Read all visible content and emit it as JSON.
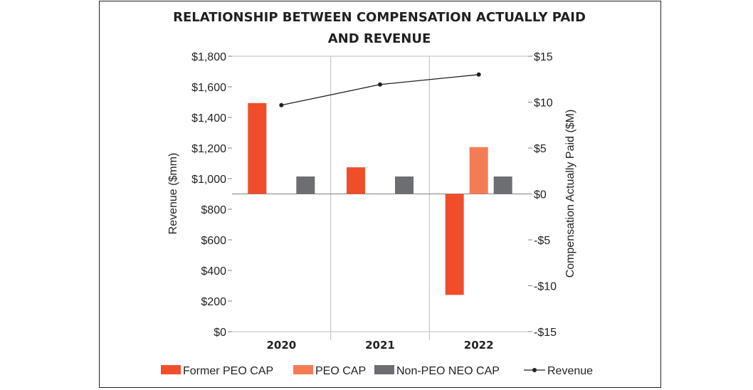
{
  "chart_data": {
    "type": "bar",
    "title_lines": [
      "RELATIONSHIP BETWEEN COMPENSATION ACTUALLY PAID",
      "AND REVENUE"
    ],
    "categories": [
      "2020",
      "2021",
      "2022"
    ],
    "y_left": {
      "label": "Revenue ($mm)",
      "lim": [
        0,
        1800
      ],
      "ticks": [
        0,
        200,
        400,
        600,
        800,
        1000,
        1200,
        1400,
        1600,
        1800
      ],
      "tick_labels": [
        "$0",
        "$200",
        "$400",
        "$600",
        "$800",
        "$1,000",
        "$1,200",
        "$1,400",
        "$1,600",
        "$1,800"
      ]
    },
    "y_right": {
      "label": "Compensation Actually Paid ($M)",
      "lim": [
        -15,
        15
      ],
      "ticks": [
        -15,
        -10,
        -5,
        0,
        5,
        10,
        15
      ],
      "tick_labels": [
        "-$15",
        "-$10",
        "-$5",
        "$0",
        "$5",
        "$10",
        "$15"
      ]
    },
    "series": [
      {
        "name": "Former PEO CAP",
        "kind": "bar",
        "axis": "right",
        "color": "#f04e2a",
        "values": [
          9.9,
          2.9,
          -11.0
        ]
      },
      {
        "name": "PEO CAP",
        "kind": "bar",
        "axis": "right",
        "color": "#f37c56",
        "values": [
          null,
          null,
          5.1
        ]
      },
      {
        "name": "Non-PEO NEO CAP",
        "kind": "bar",
        "axis": "right",
        "color": "#6d6e71",
        "values": [
          1.9,
          1.9,
          1.9
        ]
      },
      {
        "name": "Revenue",
        "kind": "line",
        "axis": "left",
        "color": "#231f20",
        "values": [
          1480,
          1615,
          1680
        ]
      }
    ],
    "grid": "vertical category separators and horizontal top line",
    "legend_position": "bottom"
  }
}
